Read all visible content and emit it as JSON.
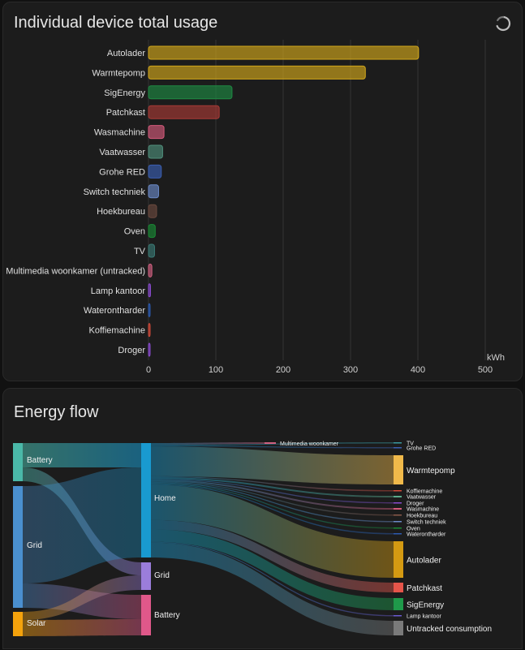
{
  "usage_card": {
    "title": "Individual device total usage",
    "refresh_icon": "refresh-icon"
  },
  "chart_data": {
    "type": "bar",
    "orientation": "horizontal",
    "categories": [
      "Autolader",
      "Warmtepomp",
      "SigEnergy",
      "Patchkast",
      "Wasmachine",
      "Vaatwasser",
      "Grohe RED",
      "Switch techniek",
      "Hoekbureau",
      "Oven",
      "TV",
      "Multimedia woonkamer (untracked)",
      "Lamp kantoor",
      "Waterontharder",
      "Koffiemachine",
      "Droger"
    ],
    "values": [
      401,
      322,
      124,
      105,
      23,
      21,
      19,
      15,
      12,
      10,
      9,
      5,
      3,
      2,
      2,
      1
    ],
    "colors": [
      "#d2a71b",
      "#d2a71b",
      "#1e8a43",
      "#a83a36",
      "#d45a7b",
      "#4f8f7b",
      "#3b5fb2",
      "#6b8ac7",
      "#6b4a3f",
      "#1a8a35",
      "#3a7a74",
      "#d06080",
      "#8a4bcf",
      "#2c5ab0",
      "#d34a3a",
      "#8a4bcf"
    ],
    "xlabel": "kWh",
    "xlim": [
      0,
      500
    ],
    "xticks": [
      0,
      100,
      200,
      300,
      400,
      500
    ],
    "grid": true
  },
  "flow_card": {
    "title": "Energy flow",
    "sources": [
      {
        "label": "Battery",
        "value": 0.13,
        "color": "#4ab8a8"
      },
      {
        "label": "Grid",
        "value": 0.57,
        "color": "#4a8fcf"
      },
      {
        "label": "Solar",
        "value": 0.09,
        "color": "#f4a20c"
      }
    ],
    "middle": [
      {
        "label": "Home",
        "value": 0.55,
        "color": "#199ad0"
      },
      {
        "label": "Grid",
        "value": 0.12,
        "color": "#9b7ddb"
      },
      {
        "label": "Battery",
        "value": 0.17,
        "color": "#e0588a"
      }
    ],
    "devices": [
      {
        "label": "Multimedia woonkamer",
        "color": "#d06080",
        "big": false
      },
      {
        "label": "TV",
        "color": "#3a9aa0",
        "big": false
      },
      {
        "label": "Grohe RED",
        "color": "#3b5fb2",
        "big": false
      },
      {
        "label": "Warmtepomp",
        "color": "#f0b94a",
        "big": true
      },
      {
        "label": "Koffiemachine",
        "color": "#d34a3a",
        "big": false
      },
      {
        "label": "Vaatwasser",
        "color": "#5aaa8a",
        "big": false
      },
      {
        "label": "Droger",
        "color": "#8a4bcf",
        "big": false
      },
      {
        "label": "Wasmachine",
        "color": "#d45a7b",
        "big": false
      },
      {
        "label": "Hoekbureau",
        "color": "#8a5a4a",
        "big": false
      },
      {
        "label": "Switch techniek",
        "color": "#6b8ac7",
        "big": false
      },
      {
        "label": "Oven",
        "color": "#1a8a35",
        "big": false
      },
      {
        "label": "Waterontharder",
        "color": "#2c5ab0",
        "big": false
      },
      {
        "label": "Autolader",
        "color": "#d49a12",
        "big": true
      },
      {
        "label": "Patchkast",
        "color": "#e5554a",
        "big": true
      },
      {
        "label": "SigEnergy",
        "color": "#1f9a4a",
        "big": true
      },
      {
        "label": "Lamp kantoor",
        "color": "#6a5acf",
        "big": false
      },
      {
        "label": "Untracked consumption",
        "color": "#7a7a7a",
        "big": true
      }
    ]
  }
}
